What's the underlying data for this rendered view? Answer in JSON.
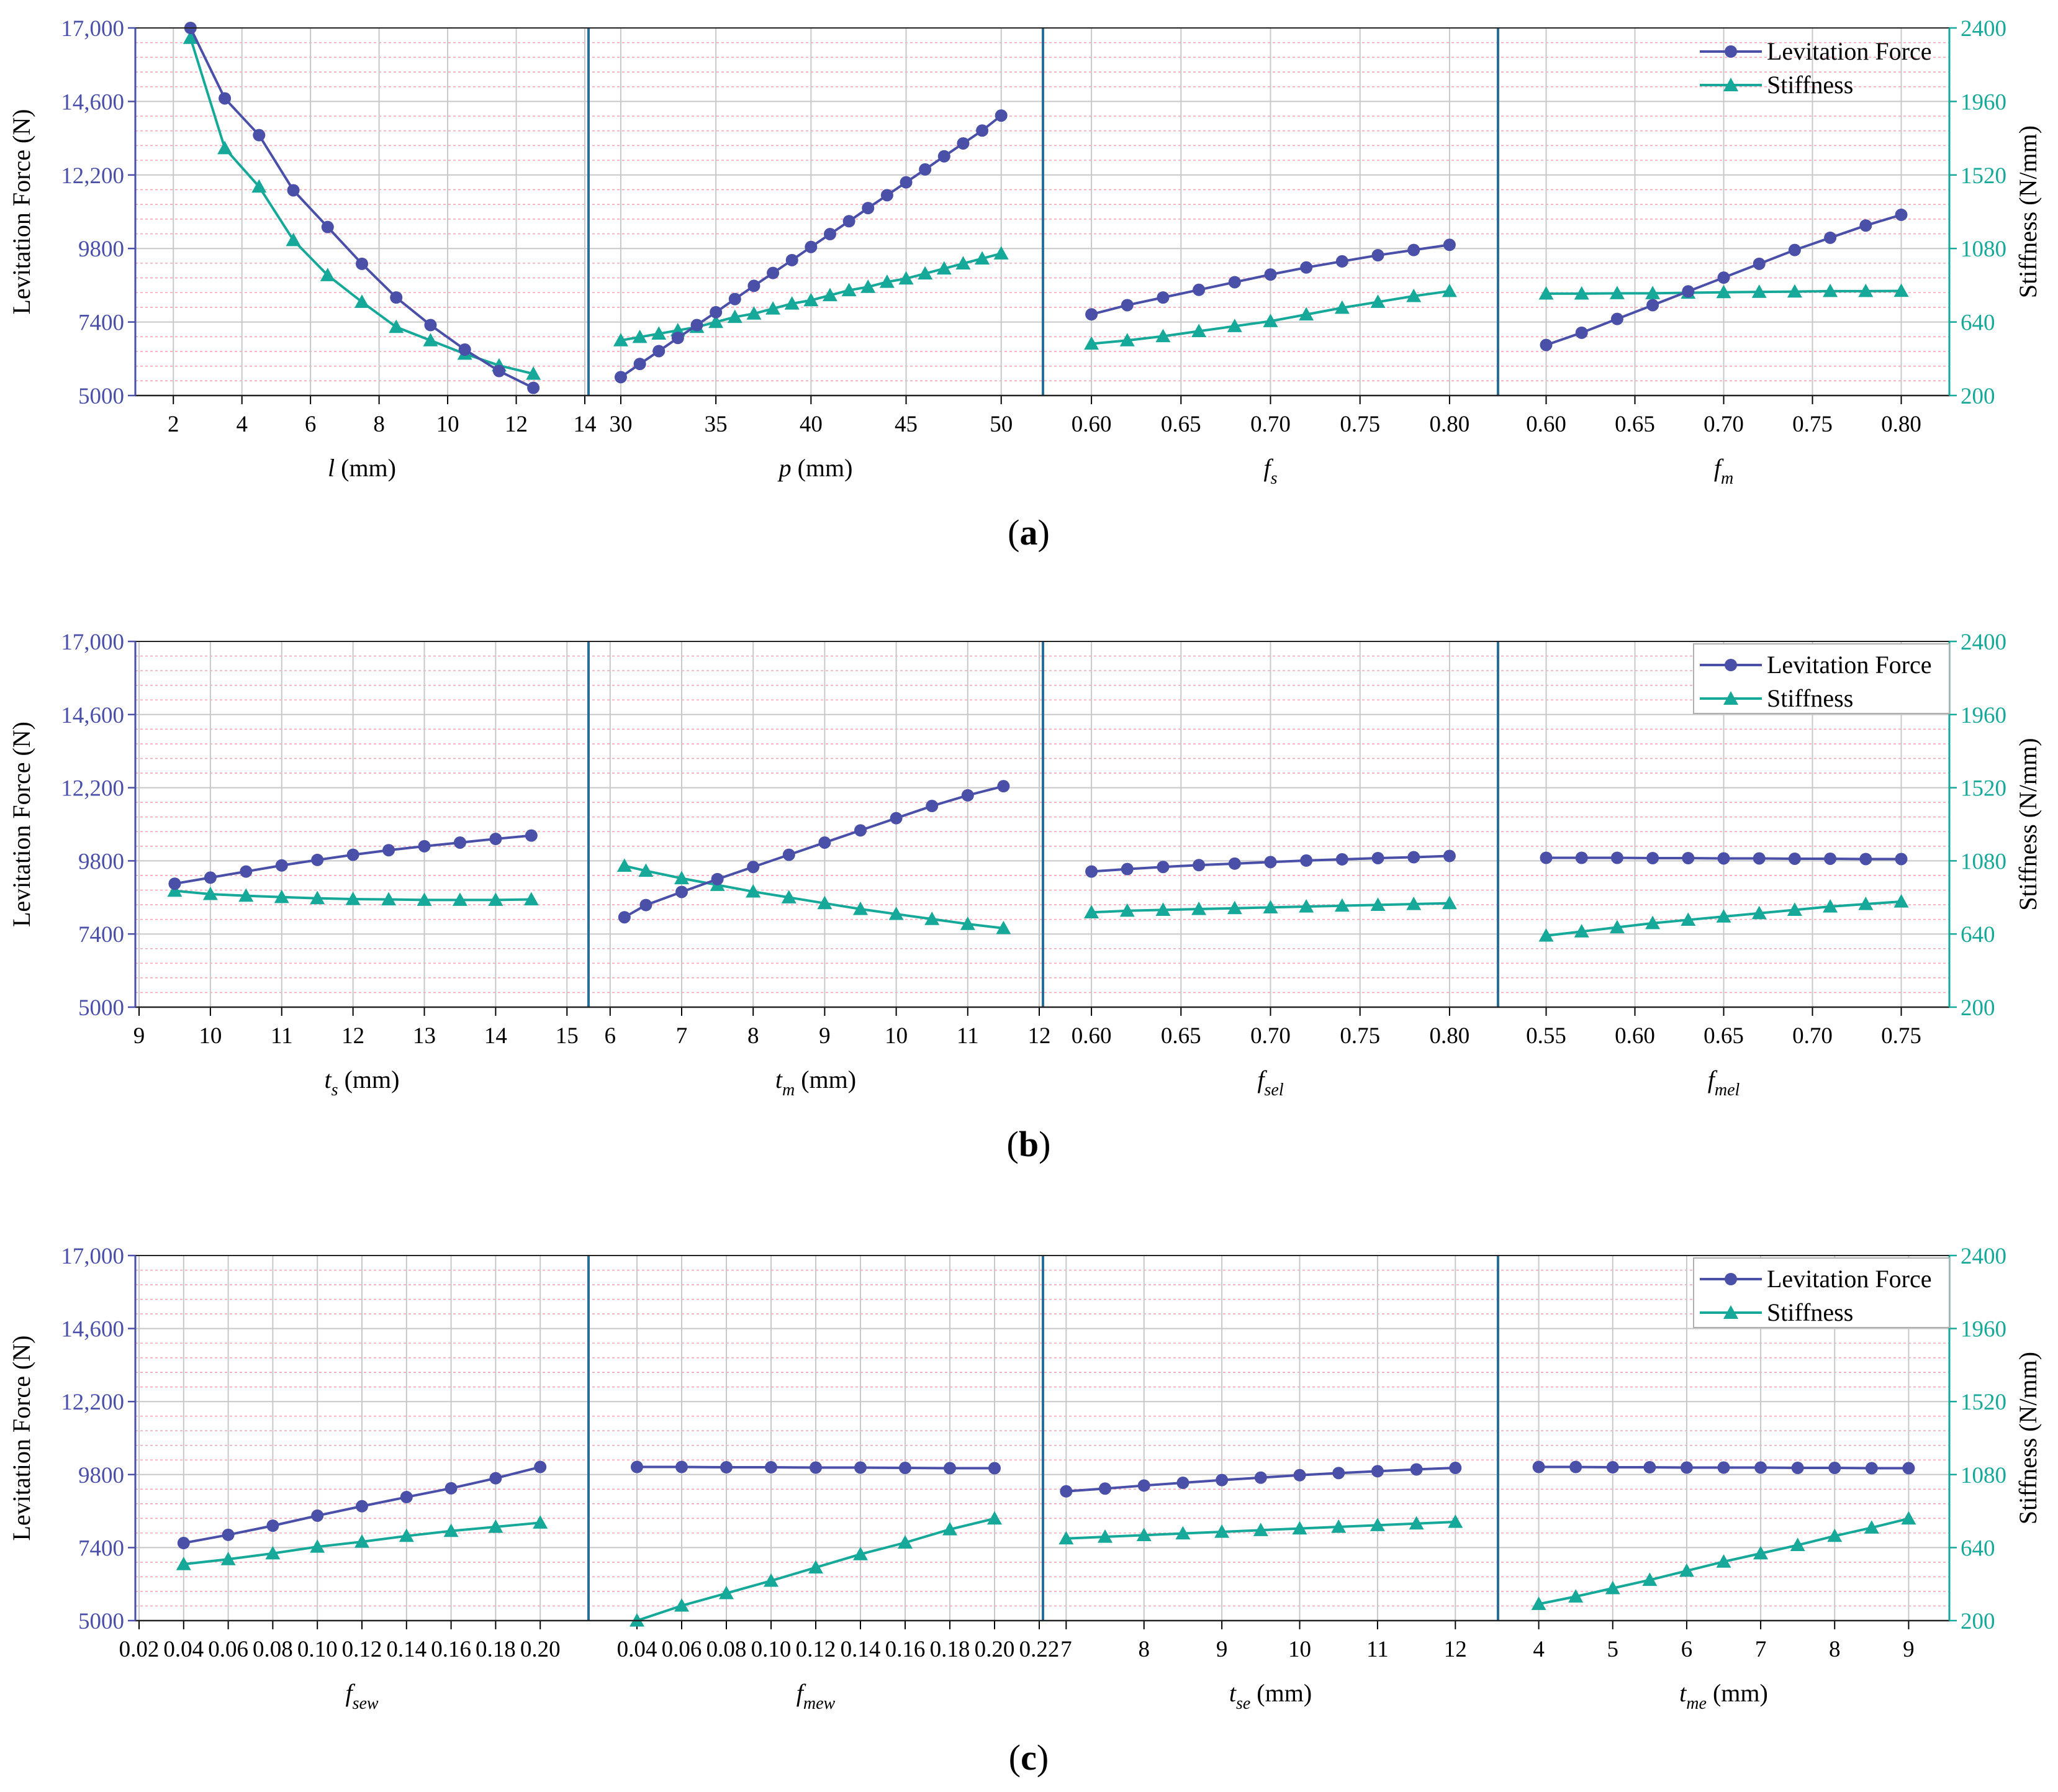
{
  "colors": {
    "force": "#4a4fa8",
    "stiffness": "#16a898",
    "left_axis": "#4a4fa8",
    "right_axis": "#16a898",
    "divider": "#2a6d96",
    "major_grid": "#c8c8c8",
    "minor_grid": "#f0a6b4",
    "legend_box": "#b0b0b0"
  },
  "legend": {
    "force": "Levitation Force",
    "stiffness": "Stiffness"
  },
  "chart_data": [
    {
      "type": "line",
      "panel_label": "(a)",
      "ylabel_left": "Levitation Force (N)",
      "ylabel_right": "Stiffness (N/mm)",
      "ylim_left": [
        5000,
        17000
      ],
      "ylim_right": [
        200,
        2400
      ],
      "yticks_left": [
        "5000",
        "7400",
        "9800",
        "12,200",
        "14,600",
        "17,000"
      ],
      "yticks_right": [
        "200",
        "640",
        "1080",
        "1520",
        "1960",
        "2400"
      ],
      "subplots": [
        {
          "xlabel": "l",
          "xlabel_sub": "",
          "xlabel_unit": " (mm)",
          "xlim": [
            1,
            14
          ],
          "xticks": [
            2,
            4,
            6,
            8,
            10,
            12,
            14
          ],
          "tick_labels": [
            "2",
            "4",
            "6",
            "8",
            "10",
            "12",
            "14"
          ],
          "x": [
            2.5,
            3.5,
            4.5,
            5.5,
            6.5,
            7.5,
            8.5,
            9.5,
            10.5,
            11.5,
            12.5
          ],
          "force": [
            17000,
            14700,
            13500,
            11700,
            10500,
            9300,
            8200,
            7300,
            6500,
            5800,
            5250
          ],
          "stiffness": [
            2340,
            1680,
            1450,
            1130,
            920,
            760,
            610,
            530,
            450,
            380,
            330
          ]
        },
        {
          "xlabel": "p",
          "xlabel_sub": "",
          "xlabel_unit": " (mm)",
          "xlim": [
            28.5,
            52
          ],
          "xticks": [
            30,
            35,
            40,
            45,
            50
          ],
          "tick_labels": [
            "30",
            "35",
            "40",
            "45",
            "50"
          ],
          "x": [
            30,
            31,
            32,
            33,
            34,
            35,
            36,
            37,
            38,
            39,
            40,
            41,
            42,
            43,
            44,
            45,
            46,
            47,
            48,
            49,
            50
          ],
          "force": [
            5600,
            6030,
            6450,
            6880,
            7300,
            7720,
            8150,
            8580,
            9000,
            9420,
            9850,
            10270,
            10690,
            11120,
            11540,
            11960,
            12380,
            12810,
            13230,
            13650,
            14140
          ],
          "stiffness": [
            530,
            550,
            570,
            590,
            610,
            640,
            670,
            690,
            720,
            750,
            770,
            800,
            830,
            850,
            880,
            900,
            930,
            960,
            990,
            1020,
            1050
          ]
        },
        {
          "xlabel": "f",
          "xlabel_sub": "s",
          "xlabel_unit": "",
          "xlim": [
            0.575,
            0.825
          ],
          "xticks": [
            0.6,
            0.65,
            0.7,
            0.75,
            0.8
          ],
          "tick_labels": [
            "0.60",
            "0.65",
            "0.70",
            "0.75",
            "0.80"
          ],
          "x": [
            0.6,
            0.62,
            0.64,
            0.66,
            0.68,
            0.7,
            0.72,
            0.74,
            0.76,
            0.78,
            0.8
          ],
          "force": [
            7650,
            7950,
            8200,
            8450,
            8700,
            8950,
            9180,
            9380,
            9580,
            9750,
            9920
          ],
          "stiffness": [
            510,
            530,
            555,
            585,
            615,
            645,
            685,
            725,
            760,
            795,
            825
          ]
        },
        {
          "xlabel": "f",
          "xlabel_sub": "m",
          "xlabel_unit": "",
          "xlim": [
            0.575,
            0.825
          ],
          "xticks": [
            0.6,
            0.65,
            0.7,
            0.75,
            0.8
          ],
          "tick_labels": [
            "0.60",
            "0.65",
            "0.70",
            "0.75",
            "0.80"
          ],
          "x": [
            0.6,
            0.62,
            0.64,
            0.66,
            0.68,
            0.7,
            0.72,
            0.74,
            0.76,
            0.78,
            0.8
          ],
          "force": [
            6650,
            7050,
            7500,
            7950,
            8400,
            8850,
            9300,
            9750,
            10150,
            10550,
            10900
          ],
          "stiffness": [
            810,
            810,
            812,
            812,
            815,
            818,
            820,
            822,
            825,
            825,
            826
          ]
        }
      ]
    },
    {
      "type": "line",
      "panel_label": "(b)",
      "ylabel_left": "Levitation Force (N)",
      "ylabel_right": "Stiffness (N/mm)",
      "ylim_left": [
        5000,
        17000
      ],
      "ylim_right": [
        200,
        2400
      ],
      "yticks_left": [
        "5000",
        "7400",
        "9800",
        "12,200",
        "14,600",
        "17,000"
      ],
      "yticks_right": [
        "200",
        "640",
        "1080",
        "1520",
        "1960",
        "2400"
      ],
      "subplots": [
        {
          "xlabel": "t",
          "xlabel_sub": "s",
          "xlabel_unit": " (mm)",
          "xlim": [
            9,
            15.25
          ],
          "xticks": [
            9,
            10,
            11,
            12,
            13,
            14,
            15
          ],
          "tick_labels": [
            "9",
            "10",
            "11",
            "12",
            "13",
            "14",
            "15"
          ],
          "x": [
            9.5,
            10,
            10.5,
            11,
            11.5,
            12,
            12.5,
            13,
            13.5,
            14,
            14.5
          ],
          "force": [
            9050,
            9250,
            9450,
            9650,
            9830,
            10000,
            10150,
            10280,
            10400,
            10520,
            10630
          ],
          "stiffness": [
            900,
            880,
            870,
            862,
            855,
            850,
            848,
            845,
            845,
            845,
            848
          ]
        },
        {
          "xlabel": "t",
          "xlabel_sub": "m",
          "xlabel_unit": " (mm)",
          "xlim": [
            5.75,
            12
          ],
          "xticks": [
            6,
            7,
            8,
            9,
            10,
            11,
            12
          ],
          "tick_labels": [
            "6",
            "7",
            "8",
            "9",
            "10",
            "11",
            "12"
          ],
          "x": [
            6.2,
            6.5,
            7.0,
            7.5,
            8.0,
            8.5,
            9.0,
            9.5,
            10.0,
            10.5,
            11.0,
            11.5
          ],
          "force": [
            7950,
            8350,
            8780,
            9200,
            9600,
            10000,
            10400,
            10800,
            11200,
            11600,
            11950,
            12250
          ],
          "stiffness": [
            1050,
            1020,
            975,
            935,
            895,
            860,
            825,
            790,
            760,
            730,
            700,
            675
          ]
        },
        {
          "xlabel": "f",
          "xlabel_sub": "sel",
          "xlabel_unit": "",
          "xlim": [
            0.575,
            0.825
          ],
          "xticks": [
            0.6,
            0.65,
            0.7,
            0.75,
            0.8
          ],
          "tick_labels": [
            "0.60",
            "0.65",
            "0.70",
            "0.75",
            "0.80"
          ],
          "x": [
            0.6,
            0.62,
            0.64,
            0.66,
            0.68,
            0.7,
            0.72,
            0.74,
            0.76,
            0.78,
            0.8
          ],
          "force": [
            9450,
            9530,
            9600,
            9660,
            9710,
            9760,
            9810,
            9850,
            9890,
            9920,
            9960
          ],
          "stiffness": [
            770,
            780,
            785,
            790,
            795,
            800,
            805,
            810,
            815,
            820,
            825
          ]
        },
        {
          "xlabel": "f",
          "xlabel_sub": "mel",
          "xlabel_unit": "",
          "xlim": [
            0.525,
            0.775
          ],
          "xticks": [
            0.55,
            0.6,
            0.65,
            0.7,
            0.75
          ],
          "tick_labels": [
            "0.55",
            "0.60",
            "0.65",
            "0.70",
            "0.75"
          ],
          "x": [
            0.55,
            0.57,
            0.59,
            0.61,
            0.63,
            0.65,
            0.67,
            0.69,
            0.71,
            0.73,
            0.75
          ],
          "force": [
            9900,
            9900,
            9900,
            9890,
            9890,
            9880,
            9880,
            9870,
            9870,
            9860,
            9860
          ],
          "stiffness": [
            630,
            655,
            680,
            705,
            725,
            745,
            765,
            785,
            805,
            820,
            835
          ]
        }
      ]
    },
    {
      "type": "line",
      "panel_label": "(c)",
      "ylabel_left": "Levitation Force (N)",
      "ylabel_right": "Stiffness (N/mm)",
      "ylim_left": [
        5000,
        17000
      ],
      "ylim_right": [
        200,
        2400
      ],
      "yticks_left": [
        "5000",
        "7400",
        "9800",
        "12,200",
        "14,600",
        "17,000"
      ],
      "yticks_right": [
        "200",
        "640",
        "1080",
        "1520",
        "1960",
        "2400"
      ],
      "subplots": [
        {
          "xlabel": "f",
          "xlabel_sub": "sew",
          "xlabel_unit": "",
          "xlim": [
            0.02,
            0.22
          ],
          "xticks": [
            0.02,
            0.04,
            0.06,
            0.08,
            0.1,
            0.12,
            0.14,
            0.16,
            0.18,
            0.2
          ],
          "tick_labels": [
            "0.02",
            "0.04",
            "0.06",
            "0.08",
            "0.10",
            "0.12",
            "0.14",
            "0.16",
            "0.18",
            "0.20"
          ],
          "x": [
            0.04,
            0.06,
            0.08,
            0.1,
            0.12,
            0.14,
            0.16,
            0.18,
            0.2
          ],
          "force": [
            7550,
            7820,
            8120,
            8450,
            8760,
            9060,
            9350,
            9680,
            10050
          ],
          "stiffness": [
            540,
            570,
            605,
            645,
            675,
            710,
            740,
            765,
            790
          ]
        },
        {
          "xlabel": "f",
          "xlabel_sub": "mew",
          "xlabel_unit": "",
          "xlim": [
            0.02,
            0.22
          ],
          "xticks": [
            0.04,
            0.06,
            0.08,
            0.1,
            0.12,
            0.14,
            0.16,
            0.18,
            0.2,
            0.22
          ],
          "tick_labels": [
            "0.04",
            "0.06",
            "0.08",
            "0.10",
            "0.12",
            "0.14",
            "0.16",
            "0.18",
            "0.20",
            "0.22"
          ],
          "x": [
            0.04,
            0.06,
            0.08,
            0.1,
            0.12,
            0.14,
            0.16,
            0.18,
            0.2
          ],
          "force": [
            10050,
            10050,
            10040,
            10040,
            10030,
            10030,
            10020,
            10010,
            10010
          ],
          "stiffness": [
            200,
            290,
            365,
            440,
            520,
            600,
            670,
            750,
            815
          ]
        },
        {
          "xlabel": "t",
          "xlabel_sub": "se",
          "xlabel_unit": " (mm)",
          "xlim": [
            6.75,
            12.5
          ],
          "xticks": [
            7,
            8,
            9,
            10,
            11,
            12
          ],
          "tick_labels": [
            "7",
            "8",
            "9",
            "10",
            "11",
            "12"
          ],
          "x": [
            7,
            7.5,
            8,
            8.5,
            9,
            9.5,
            10,
            10.5,
            11,
            11.5,
            12
          ],
          "force": [
            9250,
            9340,
            9440,
            9530,
            9620,
            9700,
            9780,
            9850,
            9910,
            9970,
            10020
          ],
          "stiffness": [
            695,
            705,
            715,
            725,
            735,
            745,
            755,
            765,
            775,
            785,
            795
          ]
        },
        {
          "xlabel": "t",
          "xlabel_sub": "me",
          "xlabel_unit": " (mm)",
          "xlim": [
            3.5,
            9.5
          ],
          "xticks": [
            4,
            5,
            6,
            7,
            8,
            9
          ],
          "tick_labels": [
            "4",
            "5",
            "6",
            "7",
            "8",
            "9"
          ],
          "x": [
            4,
            4.5,
            5,
            5.5,
            6,
            6.5,
            7,
            7.5,
            8,
            8.5,
            9
          ],
          "force": [
            10050,
            10050,
            10040,
            10040,
            10030,
            10030,
            10030,
            10020,
            10020,
            10010,
            10010
          ],
          "stiffness": [
            300,
            345,
            395,
            445,
            500,
            555,
            605,
            655,
            710,
            760,
            815
          ]
        }
      ]
    }
  ]
}
